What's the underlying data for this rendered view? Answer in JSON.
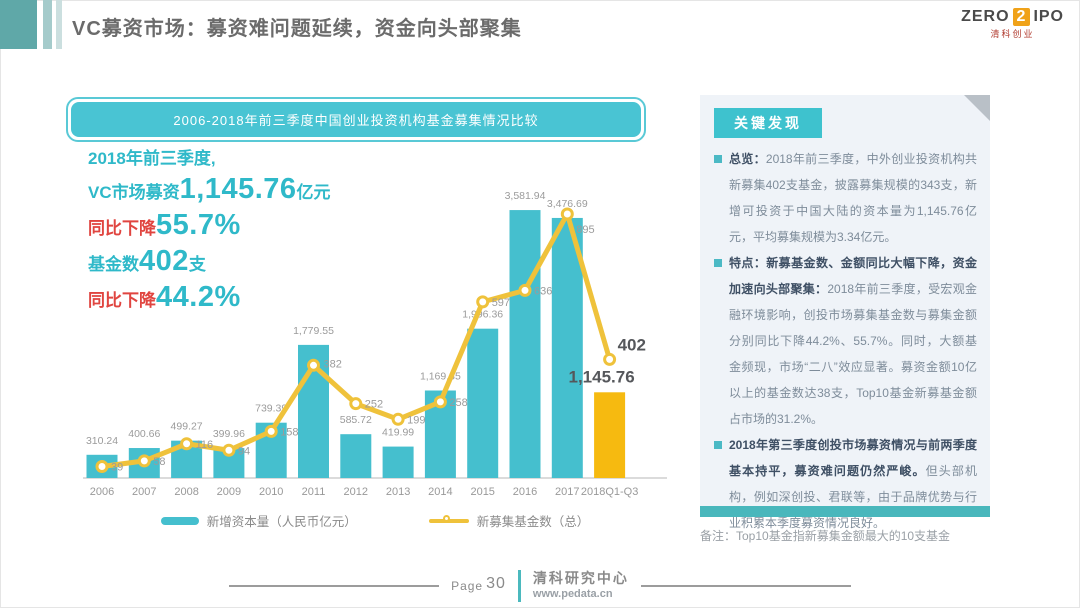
{
  "header": {
    "title": "VC募资市场：募资难问题延续，资金向头部聚集",
    "logo": {
      "zero": "ZERO",
      "two": "2",
      "ipo": "IPO",
      "subtitle": "清科创业"
    }
  },
  "banner": {
    "title": "2006-2018年前三季度中国创业投资机构基金募集情况比较"
  },
  "stats": {
    "line1": "2018年前三季度,",
    "line2_prefix": "VC市场募资",
    "line2_value": "1,145.76",
    "line2_suffix": "亿元",
    "line3_label": "同比下降",
    "line3_value": "55.7%",
    "line4_prefix": "基金数",
    "line4_value": "402",
    "line4_suffix": "支",
    "line5_label": "同比下降",
    "line5_value": "44.2%"
  },
  "chart_data": {
    "type": "combo-bar-line",
    "title": "2006-2018年前三季度中国创业投资机构基金募集情况比较",
    "categories": [
      "2006",
      "2007",
      "2008",
      "2009",
      "2010",
      "2011",
      "2012",
      "2013",
      "2014",
      "2015",
      "2016",
      "2017",
      "2018Q1-Q3"
    ],
    "series": [
      {
        "name": "新增资本量（人民币亿元）",
        "type": "bar",
        "values": [
          310.24,
          400.66,
          499.27,
          399.96,
          739.39,
          1779.55,
          585.72,
          419.99,
          1169.85,
          1996.36,
          3581.94,
          3476.69,
          1145.76
        ]
      },
      {
        "name": "新募集基金数（总）",
        "type": "line",
        "values": [
          39,
          58,
          116,
          94,
          158,
          382,
          252,
          199,
          258,
          597,
          636,
          895,
          402
        ]
      }
    ],
    "value_labels": [
      "310.24",
      "400.66",
      "499.27",
      "399.96",
      "739.39",
      "1,779.55",
      "585.72",
      "419.99",
      "1,169.85",
      "1,996.36",
      "3,581.94",
      "3,476.69",
      "1,145.76"
    ],
    "colors": {
      "bar": "#45bfce",
      "bar_highlight": "#f6ba10",
      "line": "#efc23b"
    },
    "bar_axis_max": 4000,
    "line_axis_max": 1000,
    "grid": false,
    "legend_position": "bottom"
  },
  "panel": {
    "title": "关键发现",
    "bullets": [
      {
        "lead": "总览：",
        "text": "2018年前三季度，中外创业投资机构共新募集402支基金，披露募集规模的343支，新增可投资于中国大陆的资本量为1,145.76亿元，平均募集规模为3.34亿元。"
      },
      {
        "lead": "特点：新募基金数、金额同比大幅下降，资金加速向头部聚集：",
        "text": "2018年前三季度，受宏观金融环境影响，创投市场募集基金数与募集金额分别同比下降44.2%、55.7%。同时，大额基金频现，市场“二八”效应显著。募资金额10亿以上的基金数达38支，Top10基金新募基金额占市场的31.2%。"
      },
      {
        "lead": "2018年第三季度创投市场募资情况与前两季度基本持平，募资难问题仍然严峻。",
        "text": "但头部机构，例如深创投、君联等，由于品牌优势与行业积累本季度募资情况良好。"
      }
    ]
  },
  "note": "备注：Top10基金指新募集金额最大的10支基金",
  "footer": {
    "page_label": "Page",
    "page_number": "30",
    "org": "清科研究中心",
    "site": "www.pedata.cn"
  }
}
